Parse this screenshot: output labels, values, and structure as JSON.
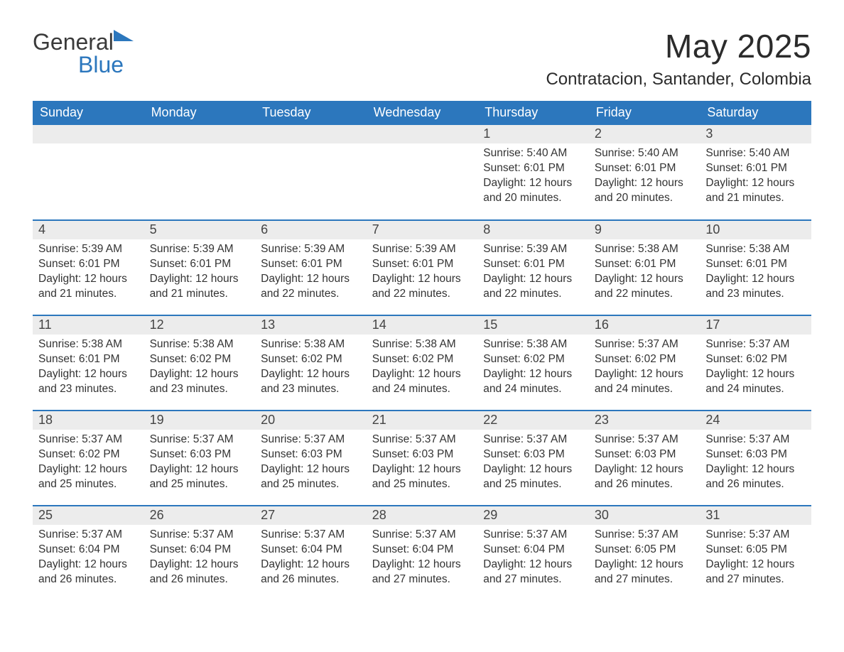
{
  "brand": {
    "name_part1": "General",
    "name_part2": "Blue"
  },
  "title": "May 2025",
  "location": "Contratacion, Santander, Colombia",
  "colors": {
    "accent": "#2c77bd",
    "header_bg": "#2c77bd",
    "header_text": "#ffffff",
    "daynum_bg": "#ececec",
    "body_text": "#333333",
    "page_bg": "#ffffff"
  },
  "calendar": {
    "type": "table",
    "columns": [
      "Sunday",
      "Monday",
      "Tuesday",
      "Wednesday",
      "Thursday",
      "Friday",
      "Saturday"
    ],
    "weeks": [
      [
        null,
        null,
        null,
        null,
        {
          "n": "1",
          "sunrise": "5:40 AM",
          "sunset": "6:01 PM",
          "daylight": "12 hours and 20 minutes."
        },
        {
          "n": "2",
          "sunrise": "5:40 AM",
          "sunset": "6:01 PM",
          "daylight": "12 hours and 20 minutes."
        },
        {
          "n": "3",
          "sunrise": "5:40 AM",
          "sunset": "6:01 PM",
          "daylight": "12 hours and 21 minutes."
        }
      ],
      [
        {
          "n": "4",
          "sunrise": "5:39 AM",
          "sunset": "6:01 PM",
          "daylight": "12 hours and 21 minutes."
        },
        {
          "n": "5",
          "sunrise": "5:39 AM",
          "sunset": "6:01 PM",
          "daylight": "12 hours and 21 minutes."
        },
        {
          "n": "6",
          "sunrise": "5:39 AM",
          "sunset": "6:01 PM",
          "daylight": "12 hours and 22 minutes."
        },
        {
          "n": "7",
          "sunrise": "5:39 AM",
          "sunset": "6:01 PM",
          "daylight": "12 hours and 22 minutes."
        },
        {
          "n": "8",
          "sunrise": "5:39 AM",
          "sunset": "6:01 PM",
          "daylight": "12 hours and 22 minutes."
        },
        {
          "n": "9",
          "sunrise": "5:38 AM",
          "sunset": "6:01 PM",
          "daylight": "12 hours and 22 minutes."
        },
        {
          "n": "10",
          "sunrise": "5:38 AM",
          "sunset": "6:01 PM",
          "daylight": "12 hours and 23 minutes."
        }
      ],
      [
        {
          "n": "11",
          "sunrise": "5:38 AM",
          "sunset": "6:01 PM",
          "daylight": "12 hours and 23 minutes."
        },
        {
          "n": "12",
          "sunrise": "5:38 AM",
          "sunset": "6:02 PM",
          "daylight": "12 hours and 23 minutes."
        },
        {
          "n": "13",
          "sunrise": "5:38 AM",
          "sunset": "6:02 PM",
          "daylight": "12 hours and 23 minutes."
        },
        {
          "n": "14",
          "sunrise": "5:38 AM",
          "sunset": "6:02 PM",
          "daylight": "12 hours and 24 minutes."
        },
        {
          "n": "15",
          "sunrise": "5:38 AM",
          "sunset": "6:02 PM",
          "daylight": "12 hours and 24 minutes."
        },
        {
          "n": "16",
          "sunrise": "5:37 AM",
          "sunset": "6:02 PM",
          "daylight": "12 hours and 24 minutes."
        },
        {
          "n": "17",
          "sunrise": "5:37 AM",
          "sunset": "6:02 PM",
          "daylight": "12 hours and 24 minutes."
        }
      ],
      [
        {
          "n": "18",
          "sunrise": "5:37 AM",
          "sunset": "6:02 PM",
          "daylight": "12 hours and 25 minutes."
        },
        {
          "n": "19",
          "sunrise": "5:37 AM",
          "sunset": "6:03 PM",
          "daylight": "12 hours and 25 minutes."
        },
        {
          "n": "20",
          "sunrise": "5:37 AM",
          "sunset": "6:03 PM",
          "daylight": "12 hours and 25 minutes."
        },
        {
          "n": "21",
          "sunrise": "5:37 AM",
          "sunset": "6:03 PM",
          "daylight": "12 hours and 25 minutes."
        },
        {
          "n": "22",
          "sunrise": "5:37 AM",
          "sunset": "6:03 PM",
          "daylight": "12 hours and 25 minutes."
        },
        {
          "n": "23",
          "sunrise": "5:37 AM",
          "sunset": "6:03 PM",
          "daylight": "12 hours and 26 minutes."
        },
        {
          "n": "24",
          "sunrise": "5:37 AM",
          "sunset": "6:03 PM",
          "daylight": "12 hours and 26 minutes."
        }
      ],
      [
        {
          "n": "25",
          "sunrise": "5:37 AM",
          "sunset": "6:04 PM",
          "daylight": "12 hours and 26 minutes."
        },
        {
          "n": "26",
          "sunrise": "5:37 AM",
          "sunset": "6:04 PM",
          "daylight": "12 hours and 26 minutes."
        },
        {
          "n": "27",
          "sunrise": "5:37 AM",
          "sunset": "6:04 PM",
          "daylight": "12 hours and 26 minutes."
        },
        {
          "n": "28",
          "sunrise": "5:37 AM",
          "sunset": "6:04 PM",
          "daylight": "12 hours and 27 minutes."
        },
        {
          "n": "29",
          "sunrise": "5:37 AM",
          "sunset": "6:04 PM",
          "daylight": "12 hours and 27 minutes."
        },
        {
          "n": "30",
          "sunrise": "5:37 AM",
          "sunset": "6:05 PM",
          "daylight": "12 hours and 27 minutes."
        },
        {
          "n": "31",
          "sunrise": "5:37 AM",
          "sunset": "6:05 PM",
          "daylight": "12 hours and 27 minutes."
        }
      ]
    ],
    "labels": {
      "sunrise_prefix": "Sunrise: ",
      "sunset_prefix": "Sunset: ",
      "daylight_prefix": "Daylight: "
    },
    "typography": {
      "header_fontsize": 18,
      "daynum_fontsize": 18,
      "body_fontsize": 15.5,
      "title_fontsize": 46,
      "location_fontsize": 24
    }
  }
}
